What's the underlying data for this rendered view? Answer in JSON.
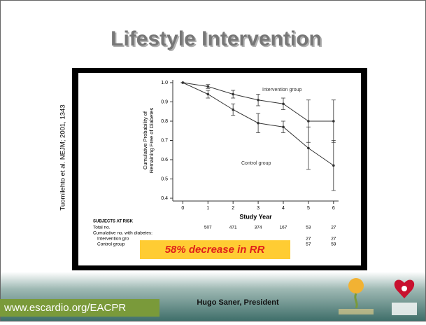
{
  "slide": {
    "title": "Lifestyle Intervention",
    "citation": "Tuomilehto et al. NEJM; 2001, 1343",
    "callout": "58% decrease in RR",
    "url": "www.escardio.org/EACPR",
    "presenter": "Hugo Saner, President"
  },
  "chart_data": {
    "type": "line",
    "xlabel": "Study Year",
    "ylabel": [
      "Cumulative Probability of",
      "Remaining Free of Diabetes"
    ],
    "x": [
      0,
      1,
      2,
      3,
      4,
      5,
      6
    ],
    "xlim": [
      -0.4,
      6.2
    ],
    "xticks": [
      0,
      1,
      2,
      3,
      4,
      5,
      6
    ],
    "ylim": [
      0.4,
      1.0
    ],
    "yticks": [
      0.4,
      0.5,
      0.6,
      0.7,
      0.8,
      0.9,
      {
        "value": 1.0,
        "label": "1.0"
      }
    ],
    "series": [
      {
        "name": "Intervention group",
        "color": "#333333",
        "values": [
          1.0,
          0.98,
          0.94,
          0.91,
          0.89,
          0.8,
          0.8
        ],
        "errors": [
          0,
          0.01,
          0.02,
          0.03,
          0.03,
          0.11,
          0.11
        ]
      },
      {
        "name": "Control group",
        "color": "#333333",
        "values": [
          1.0,
          0.94,
          0.86,
          0.79,
          0.77,
          0.66,
          0.57
        ],
        "errors": [
          0,
          0.02,
          0.03,
          0.05,
          0.03,
          0.11,
          0.13
        ]
      }
    ],
    "risk_table": {
      "title": "Subjects at Risk",
      "rows": [
        {
          "label": "Total no.",
          "values": [
            507,
            471,
            374,
            167,
            53,
            27
          ]
        },
        {
          "label": "Cumulative no. with diabetes:",
          "values": []
        },
        {
          "label": "Intervention gro",
          "values": [
            null,
            null,
            null,
            null,
            27,
            27
          ]
        },
        {
          "label": "Control group",
          "values": [
            null,
            null,
            null,
            null,
            57,
            59
          ]
        }
      ]
    }
  }
}
